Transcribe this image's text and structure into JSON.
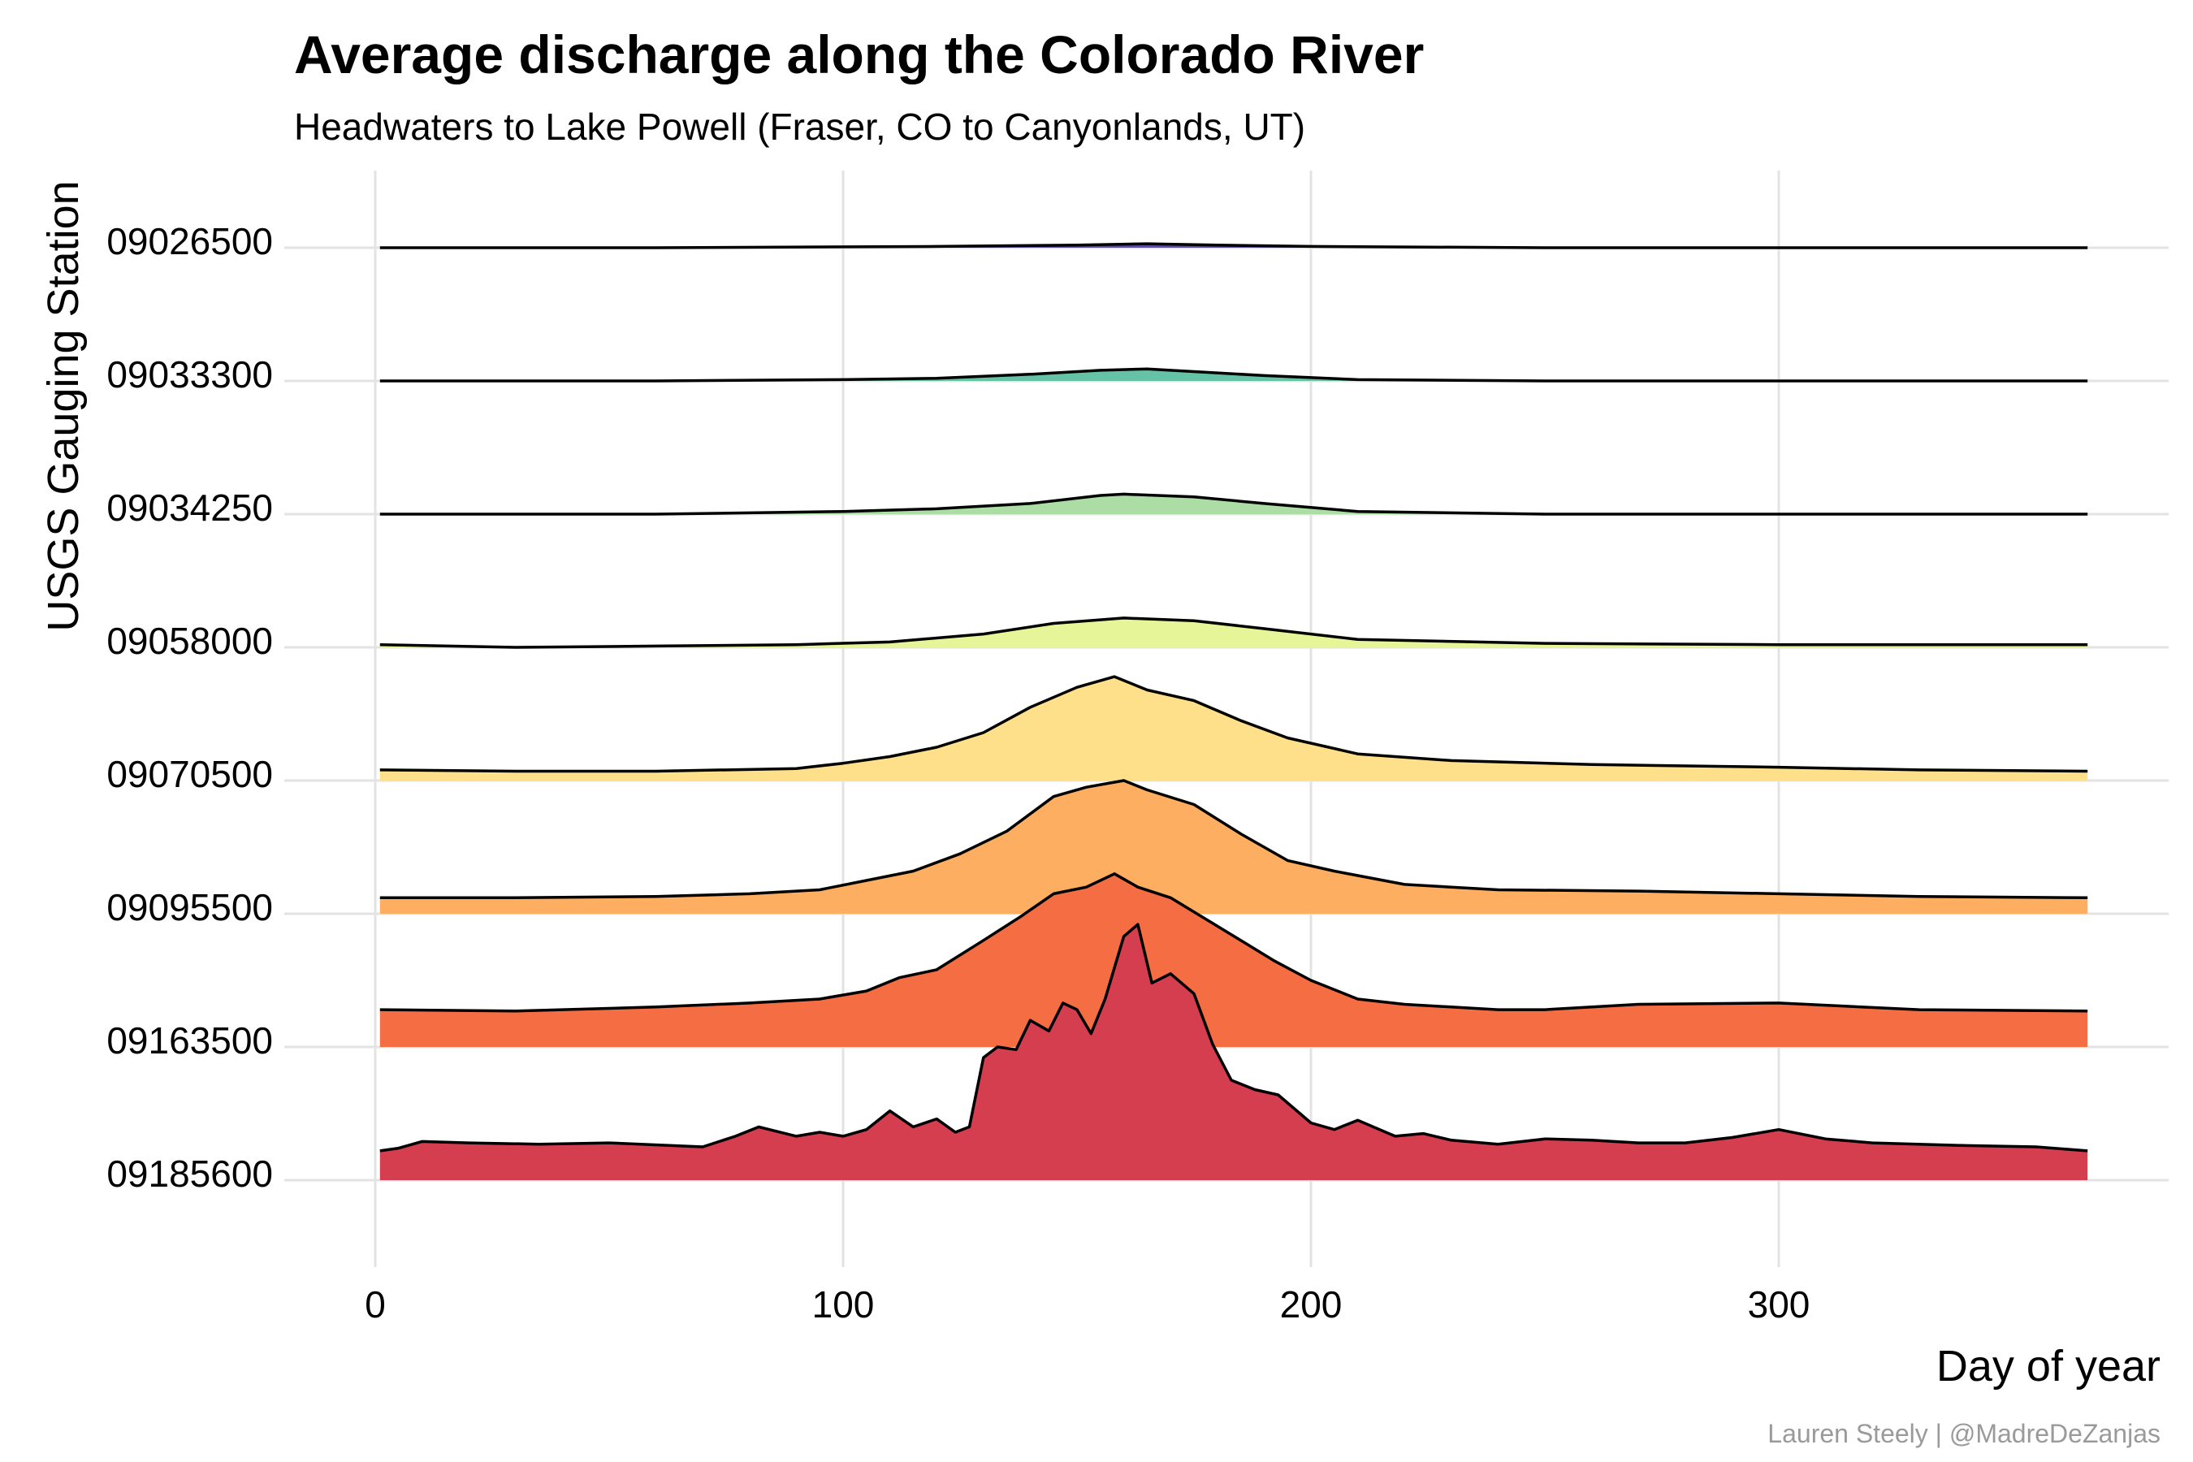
{
  "chart_data": {
    "type": "area",
    "subtype": "ridgeline",
    "title": "Average discharge along the Colorado River",
    "subtitle": "Headwaters to Lake Powell (Fraser, CO to Canyonlands, UT)",
    "xlabel": "Day of year",
    "ylabel": "USGS Gauging Station",
    "caption": "Lauren Steely | @MadreDeZanjas",
    "xlim": [
      0,
      366
    ],
    "xticks": [
      0,
      100,
      200,
      300
    ],
    "grid": true,
    "legend": "none",
    "series": [
      {
        "name": "09026500",
        "color": "#5e4fa2",
        "points": [
          [
            1,
            0.0
          ],
          [
            60,
            0.0
          ],
          [
            120,
            0.01
          ],
          [
            150,
            0.02
          ],
          [
            165,
            0.03
          ],
          [
            180,
            0.02
          ],
          [
            200,
            0.01
          ],
          [
            250,
            0.0
          ],
          [
            300,
            0.0
          ],
          [
            366,
            0.0
          ]
        ]
      },
      {
        "name": "09033300",
        "color": "#66c2a5",
        "points": [
          [
            1,
            0.0
          ],
          [
            60,
            0.0
          ],
          [
            100,
            0.01
          ],
          [
            120,
            0.02
          ],
          [
            140,
            0.05
          ],
          [
            155,
            0.08
          ],
          [
            165,
            0.09
          ],
          [
            175,
            0.07
          ],
          [
            190,
            0.04
          ],
          [
            210,
            0.01
          ],
          [
            250,
            0.0
          ],
          [
            366,
            0.0
          ]
        ]
      },
      {
        "name": "09034250",
        "color": "#abdda4",
        "points": [
          [
            1,
            0.0
          ],
          [
            60,
            0.0
          ],
          [
            100,
            0.02
          ],
          [
            120,
            0.04
          ],
          [
            140,
            0.08
          ],
          [
            155,
            0.14
          ],
          [
            160,
            0.15
          ],
          [
            175,
            0.13
          ],
          [
            190,
            0.08
          ],
          [
            210,
            0.02
          ],
          [
            250,
            0.0
          ],
          [
            366,
            0.0
          ]
        ]
      },
      {
        "name": "09058000",
        "color": "#e6f598",
        "points": [
          [
            1,
            0.02
          ],
          [
            30,
            0.0
          ],
          [
            60,
            0.01
          ],
          [
            90,
            0.02
          ],
          [
            110,
            0.04
          ],
          [
            130,
            0.1
          ],
          [
            145,
            0.18
          ],
          [
            160,
            0.22
          ],
          [
            175,
            0.2
          ],
          [
            190,
            0.14
          ],
          [
            210,
            0.06
          ],
          [
            250,
            0.03
          ],
          [
            300,
            0.02
          ],
          [
            366,
            0.02
          ]
        ]
      },
      {
        "name": "09070500",
        "color": "#fee08b",
        "points": [
          [
            1,
            0.08
          ],
          [
            30,
            0.07
          ],
          [
            60,
            0.07
          ],
          [
            90,
            0.09
          ],
          [
            100,
            0.13
          ],
          [
            110,
            0.18
          ],
          [
            120,
            0.25
          ],
          [
            130,
            0.36
          ],
          [
            140,
            0.55
          ],
          [
            150,
            0.7
          ],
          [
            158,
            0.78
          ],
          [
            165,
            0.68
          ],
          [
            175,
            0.6
          ],
          [
            185,
            0.45
          ],
          [
            195,
            0.32
          ],
          [
            210,
            0.2
          ],
          [
            230,
            0.15
          ],
          [
            260,
            0.12
          ],
          [
            300,
            0.1
          ],
          [
            330,
            0.08
          ],
          [
            366,
            0.07
          ]
        ]
      },
      {
        "name": "09095500",
        "color": "#fdae61",
        "points": [
          [
            1,
            0.12
          ],
          [
            30,
            0.12
          ],
          [
            60,
            0.13
          ],
          [
            80,
            0.15
          ],
          [
            95,
            0.18
          ],
          [
            105,
            0.25
          ],
          [
            115,
            0.32
          ],
          [
            125,
            0.45
          ],
          [
            135,
            0.62
          ],
          [
            145,
            0.88
          ],
          [
            152,
            0.95
          ],
          [
            160,
            1.0
          ],
          [
            165,
            0.93
          ],
          [
            175,
            0.82
          ],
          [
            185,
            0.6
          ],
          [
            195,
            0.4
          ],
          [
            205,
            0.32
          ],
          [
            220,
            0.22
          ],
          [
            240,
            0.18
          ],
          [
            270,
            0.17
          ],
          [
            300,
            0.15
          ],
          [
            330,
            0.13
          ],
          [
            366,
            0.12
          ]
        ]
      },
      {
        "name": "09163500",
        "color": "#f46d43",
        "points": [
          [
            1,
            0.28
          ],
          [
            30,
            0.27
          ],
          [
            60,
            0.3
          ],
          [
            80,
            0.33
          ],
          [
            95,
            0.36
          ],
          [
            105,
            0.42
          ],
          [
            112,
            0.52
          ],
          [
            120,
            0.58
          ],
          [
            130,
            0.8
          ],
          [
            138,
            0.98
          ],
          [
            145,
            1.15
          ],
          [
            152,
            1.2
          ],
          [
            158,
            1.3
          ],
          [
            163,
            1.2
          ],
          [
            170,
            1.12
          ],
          [
            178,
            0.95
          ],
          [
            185,
            0.8
          ],
          [
            192,
            0.65
          ],
          [
            200,
            0.5
          ],
          [
            210,
            0.36
          ],
          [
            220,
            0.32
          ],
          [
            240,
            0.28
          ],
          [
            250,
            0.28
          ],
          [
            270,
            0.32
          ],
          [
            300,
            0.33
          ],
          [
            330,
            0.28
          ],
          [
            366,
            0.27
          ]
        ]
      },
      {
        "name": "09185600",
        "color": "#d53e4f",
        "points": [
          [
            1,
            0.22
          ],
          [
            5,
            0.24
          ],
          [
            10,
            0.29
          ],
          [
            20,
            0.28
          ],
          [
            35,
            0.27
          ],
          [
            50,
            0.28
          ],
          [
            70,
            0.25
          ],
          [
            77,
            0.33
          ],
          [
            82,
            0.4
          ],
          [
            90,
            0.33
          ],
          [
            95,
            0.36
          ],
          [
            100,
            0.33
          ],
          [
            105,
            0.38
          ],
          [
            110,
            0.52
          ],
          [
            115,
            0.4
          ],
          [
            120,
            0.46
          ],
          [
            124,
            0.36
          ],
          [
            127,
            0.4
          ],
          [
            130,
            0.92
          ],
          [
            133,
            1.0
          ],
          [
            137,
            0.98
          ],
          [
            140,
            1.2
          ],
          [
            144,
            1.12
          ],
          [
            147,
            1.33
          ],
          [
            150,
            1.28
          ],
          [
            153,
            1.1
          ],
          [
            156,
            1.36
          ],
          [
            160,
            1.83
          ],
          [
            163,
            1.92
          ],
          [
            166,
            1.48
          ],
          [
            170,
            1.55
          ],
          [
            175,
            1.4
          ],
          [
            179,
            1.02
          ],
          [
            183,
            0.75
          ],
          [
            188,
            0.68
          ],
          [
            193,
            0.64
          ],
          [
            200,
            0.43
          ],
          [
            205,
            0.38
          ],
          [
            210,
            0.45
          ],
          [
            218,
            0.33
          ],
          [
            224,
            0.35
          ],
          [
            230,
            0.3
          ],
          [
            240,
            0.27
          ],
          [
            250,
            0.31
          ],
          [
            260,
            0.3
          ],
          [
            270,
            0.28
          ],
          [
            280,
            0.28
          ],
          [
            290,
            0.32
          ],
          [
            300,
            0.38
          ],
          [
            310,
            0.31
          ],
          [
            320,
            0.28
          ],
          [
            340,
            0.26
          ],
          [
            355,
            0.25
          ],
          [
            366,
            0.22
          ]
        ]
      }
    ]
  }
}
